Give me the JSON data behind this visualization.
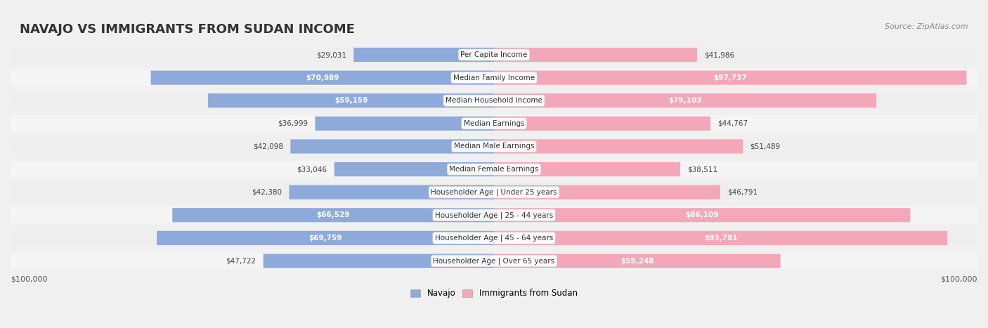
{
  "title": "NAVAJO VS IMMIGRANTS FROM SUDAN INCOME",
  "source": "Source: ZipAtlas.com",
  "categories": [
    "Per Capita Income",
    "Median Family Income",
    "Median Household Income",
    "Median Earnings",
    "Median Male Earnings",
    "Median Female Earnings",
    "Householder Age | Under 25 years",
    "Householder Age | 25 - 44 years",
    "Householder Age | 45 - 64 years",
    "Householder Age | Over 65 years"
  ],
  "navajo": [
    29031,
    70989,
    59159,
    36999,
    42098,
    33046,
    42380,
    66529,
    69759,
    47722
  ],
  "sudan": [
    41986,
    97737,
    79103,
    44767,
    51489,
    38511,
    46791,
    86109,
    93781,
    59248
  ],
  "max_val": 100000,
  "navajo_color": "#8eaadb",
  "navajo_color_dark": "#6e9bd0",
  "sudan_color": "#f4a7b9",
  "sudan_color_dark": "#ee82a0",
  "navajo_label_color_inside": "#ffffff",
  "navajo_label_color_outside": "#555555",
  "sudan_label_color_inside": "#ffffff",
  "sudan_label_color_outside": "#555555",
  "background_color": "#f0f0f0",
  "row_background": "#f8f8f8",
  "xlabel_left": "$100,000",
  "xlabel_right": "$100,000",
  "legend_navajo": "Navajo",
  "legend_sudan": "Immigrants from Sudan",
  "navajo_threshold": 55000,
  "sudan_threshold": 55000
}
